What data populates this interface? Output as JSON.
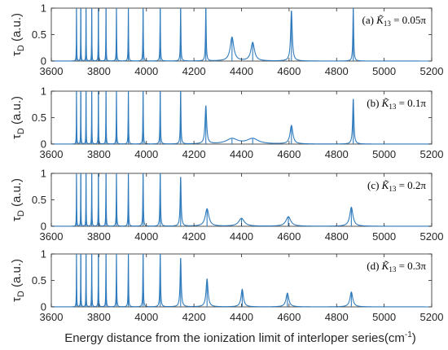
{
  "figure": {
    "xlabel": "Energy distance from the ionization limit of interloper series(cm",
    "xlabel_sup": "-1",
    "xlabel_end": ")",
    "ylabel_main": "τ",
    "ylabel_sub": "D",
    "ylabel_rest": " (a.u.)"
  },
  "chart_data": [
    {
      "type": "line",
      "annotation": "(a) K̃₁₃ = 0.05π",
      "annotation_parts": {
        "prefix": "(a) ",
        "sym": "K̃",
        "sub": "13",
        "eq": " = 0.05π"
      },
      "xlim": [
        3600,
        5200
      ],
      "ylim": [
        0,
        1
      ],
      "xticks": [
        3600,
        3800,
        4000,
        4200,
        4400,
        4600,
        4800,
        5000,
        5200
      ],
      "yticks": [
        0,
        0.5,
        1
      ],
      "series_color": "#2f7bbd",
      "peaks": [
        {
          "x": 3706,
          "h": 1.0,
          "w": 0.7
        },
        {
          "x": 3724,
          "h": 1.0,
          "w": 0.7
        },
        {
          "x": 3746,
          "h": 1.0,
          "w": 0.7
        },
        {
          "x": 3770,
          "h": 1.0,
          "w": 0.7
        },
        {
          "x": 3798,
          "h": 1.0,
          "w": 0.8
        },
        {
          "x": 3830,
          "h": 1.0,
          "w": 0.8
        },
        {
          "x": 3874,
          "h": 1.0,
          "w": 0.9
        },
        {
          "x": 3924,
          "h": 1.0,
          "w": 1.0
        },
        {
          "x": 3986,
          "h": 1.0,
          "w": 1.1
        },
        {
          "x": 4058,
          "h": 1.0,
          "w": 1.2
        },
        {
          "x": 4144,
          "h": 1.0,
          "w": 1.4
        },
        {
          "x": 4250,
          "h": 1.0,
          "w": 1.8
        },
        {
          "x": 4360,
          "h": 0.45,
          "w": 9
        },
        {
          "x": 4447,
          "h": 0.35,
          "w": 9
        },
        {
          "x": 4610,
          "h": 0.95,
          "w": 4
        },
        {
          "x": 4870,
          "h": 1.0,
          "w": 2
        }
      ]
    },
    {
      "type": "line",
      "annotation": "(b) K̃₁₃ = 0.1π",
      "annotation_parts": {
        "prefix": "(b) ",
        "sym": "K̃",
        "sub": "13",
        "eq": " = 0.1π"
      },
      "xlim": [
        3600,
        5200
      ],
      "ylim": [
        0,
        1
      ],
      "xticks": [
        3600,
        3800,
        4000,
        4200,
        4400,
        4600,
        4800,
        5000,
        5200
      ],
      "yticks": [
        0,
        0.5,
        1
      ],
      "series_color": "#2f7bbd",
      "peaks": [
        {
          "x": 3706,
          "h": 1.0,
          "w": 0.7
        },
        {
          "x": 3724,
          "h": 1.0,
          "w": 0.7
        },
        {
          "x": 3746,
          "h": 1.0,
          "w": 0.7
        },
        {
          "x": 3770,
          "h": 1.0,
          "w": 0.7
        },
        {
          "x": 3798,
          "h": 1.0,
          "w": 0.8
        },
        {
          "x": 3830,
          "h": 1.0,
          "w": 0.8
        },
        {
          "x": 3874,
          "h": 1.0,
          "w": 0.9
        },
        {
          "x": 3924,
          "h": 1.0,
          "w": 1.0
        },
        {
          "x": 3986,
          "h": 1.0,
          "w": 1.1
        },
        {
          "x": 4058,
          "h": 1.0,
          "w": 1.3
        },
        {
          "x": 4144,
          "h": 1.0,
          "w": 1.6
        },
        {
          "x": 4250,
          "h": 0.72,
          "w": 4
        },
        {
          "x": 4360,
          "h": 0.1,
          "w": 28
        },
        {
          "x": 4447,
          "h": 0.1,
          "w": 28
        },
        {
          "x": 4610,
          "h": 0.35,
          "w": 7
        },
        {
          "x": 4870,
          "h": 0.85,
          "w": 3
        }
      ]
    },
    {
      "type": "line",
      "annotation": "(c) K̃₁₃ = 0.2π",
      "annotation_parts": {
        "prefix": "(c) ",
        "sym": "K̃",
        "sub": "13",
        "eq": " = 0.2π"
      },
      "xlim": [
        3600,
        5200
      ],
      "ylim": [
        0,
        1
      ],
      "xticks": [
        3600,
        3800,
        4000,
        4200,
        4400,
        4600,
        4800,
        5000,
        5200
      ],
      "yticks": [
        0,
        0.5,
        1
      ],
      "series_color": "#2f7bbd",
      "peaks": [
        {
          "x": 3706,
          "h": 1.0,
          "w": 0.7
        },
        {
          "x": 3724,
          "h": 1.0,
          "w": 0.7
        },
        {
          "x": 3746,
          "h": 1.0,
          "w": 0.7
        },
        {
          "x": 3770,
          "h": 1.0,
          "w": 0.8
        },
        {
          "x": 3798,
          "h": 1.0,
          "w": 0.8
        },
        {
          "x": 3830,
          "h": 1.0,
          "w": 0.9
        },
        {
          "x": 3874,
          "h": 1.0,
          "w": 1.0
        },
        {
          "x": 3924,
          "h": 1.0,
          "w": 1.1
        },
        {
          "x": 3986,
          "h": 1.0,
          "w": 1.3
        },
        {
          "x": 4058,
          "h": 1.0,
          "w": 1.6
        },
        {
          "x": 4144,
          "h": 0.93,
          "w": 2.5
        },
        {
          "x": 4255,
          "h": 0.33,
          "w": 9
        },
        {
          "x": 4400,
          "h": 0.15,
          "w": 14
        },
        {
          "x": 4597,
          "h": 0.18,
          "w": 12
        },
        {
          "x": 4862,
          "h": 0.36,
          "w": 8
        }
      ]
    },
    {
      "type": "line",
      "annotation": "(d) K̃₁₃ = 0.3π",
      "annotation_parts": {
        "prefix": "(d) ",
        "sym": "K̃",
        "sub": "13",
        "eq": " = 0.3π"
      },
      "xlim": [
        3600,
        5200
      ],
      "ylim": [
        0,
        1
      ],
      "xticks": [
        3600,
        3800,
        4000,
        4200,
        4400,
        4600,
        4800,
        5000,
        5200
      ],
      "yticks": [
        0,
        0.5,
        1
      ],
      "series_color": "#2f7bbd",
      "peaks": [
        {
          "x": 3706,
          "h": 1.0,
          "w": 0.7
        },
        {
          "x": 3724,
          "h": 1.0,
          "w": 0.7
        },
        {
          "x": 3746,
          "h": 1.0,
          "w": 0.7
        },
        {
          "x": 3770,
          "h": 1.0,
          "w": 0.8
        },
        {
          "x": 3798,
          "h": 1.0,
          "w": 0.8
        },
        {
          "x": 3830,
          "h": 1.0,
          "w": 0.9
        },
        {
          "x": 3874,
          "h": 1.0,
          "w": 1.0
        },
        {
          "x": 3924,
          "h": 1.0,
          "w": 1.1
        },
        {
          "x": 3986,
          "h": 1.0,
          "w": 1.3
        },
        {
          "x": 4058,
          "h": 1.0,
          "w": 1.7
        },
        {
          "x": 4144,
          "h": 0.92,
          "w": 2.8
        },
        {
          "x": 4255,
          "h": 0.53,
          "w": 5
        },
        {
          "x": 4403,
          "h": 0.33,
          "w": 6
        },
        {
          "x": 4593,
          "h": 0.26,
          "w": 7
        },
        {
          "x": 4862,
          "h": 0.28,
          "w": 7
        }
      ]
    }
  ]
}
